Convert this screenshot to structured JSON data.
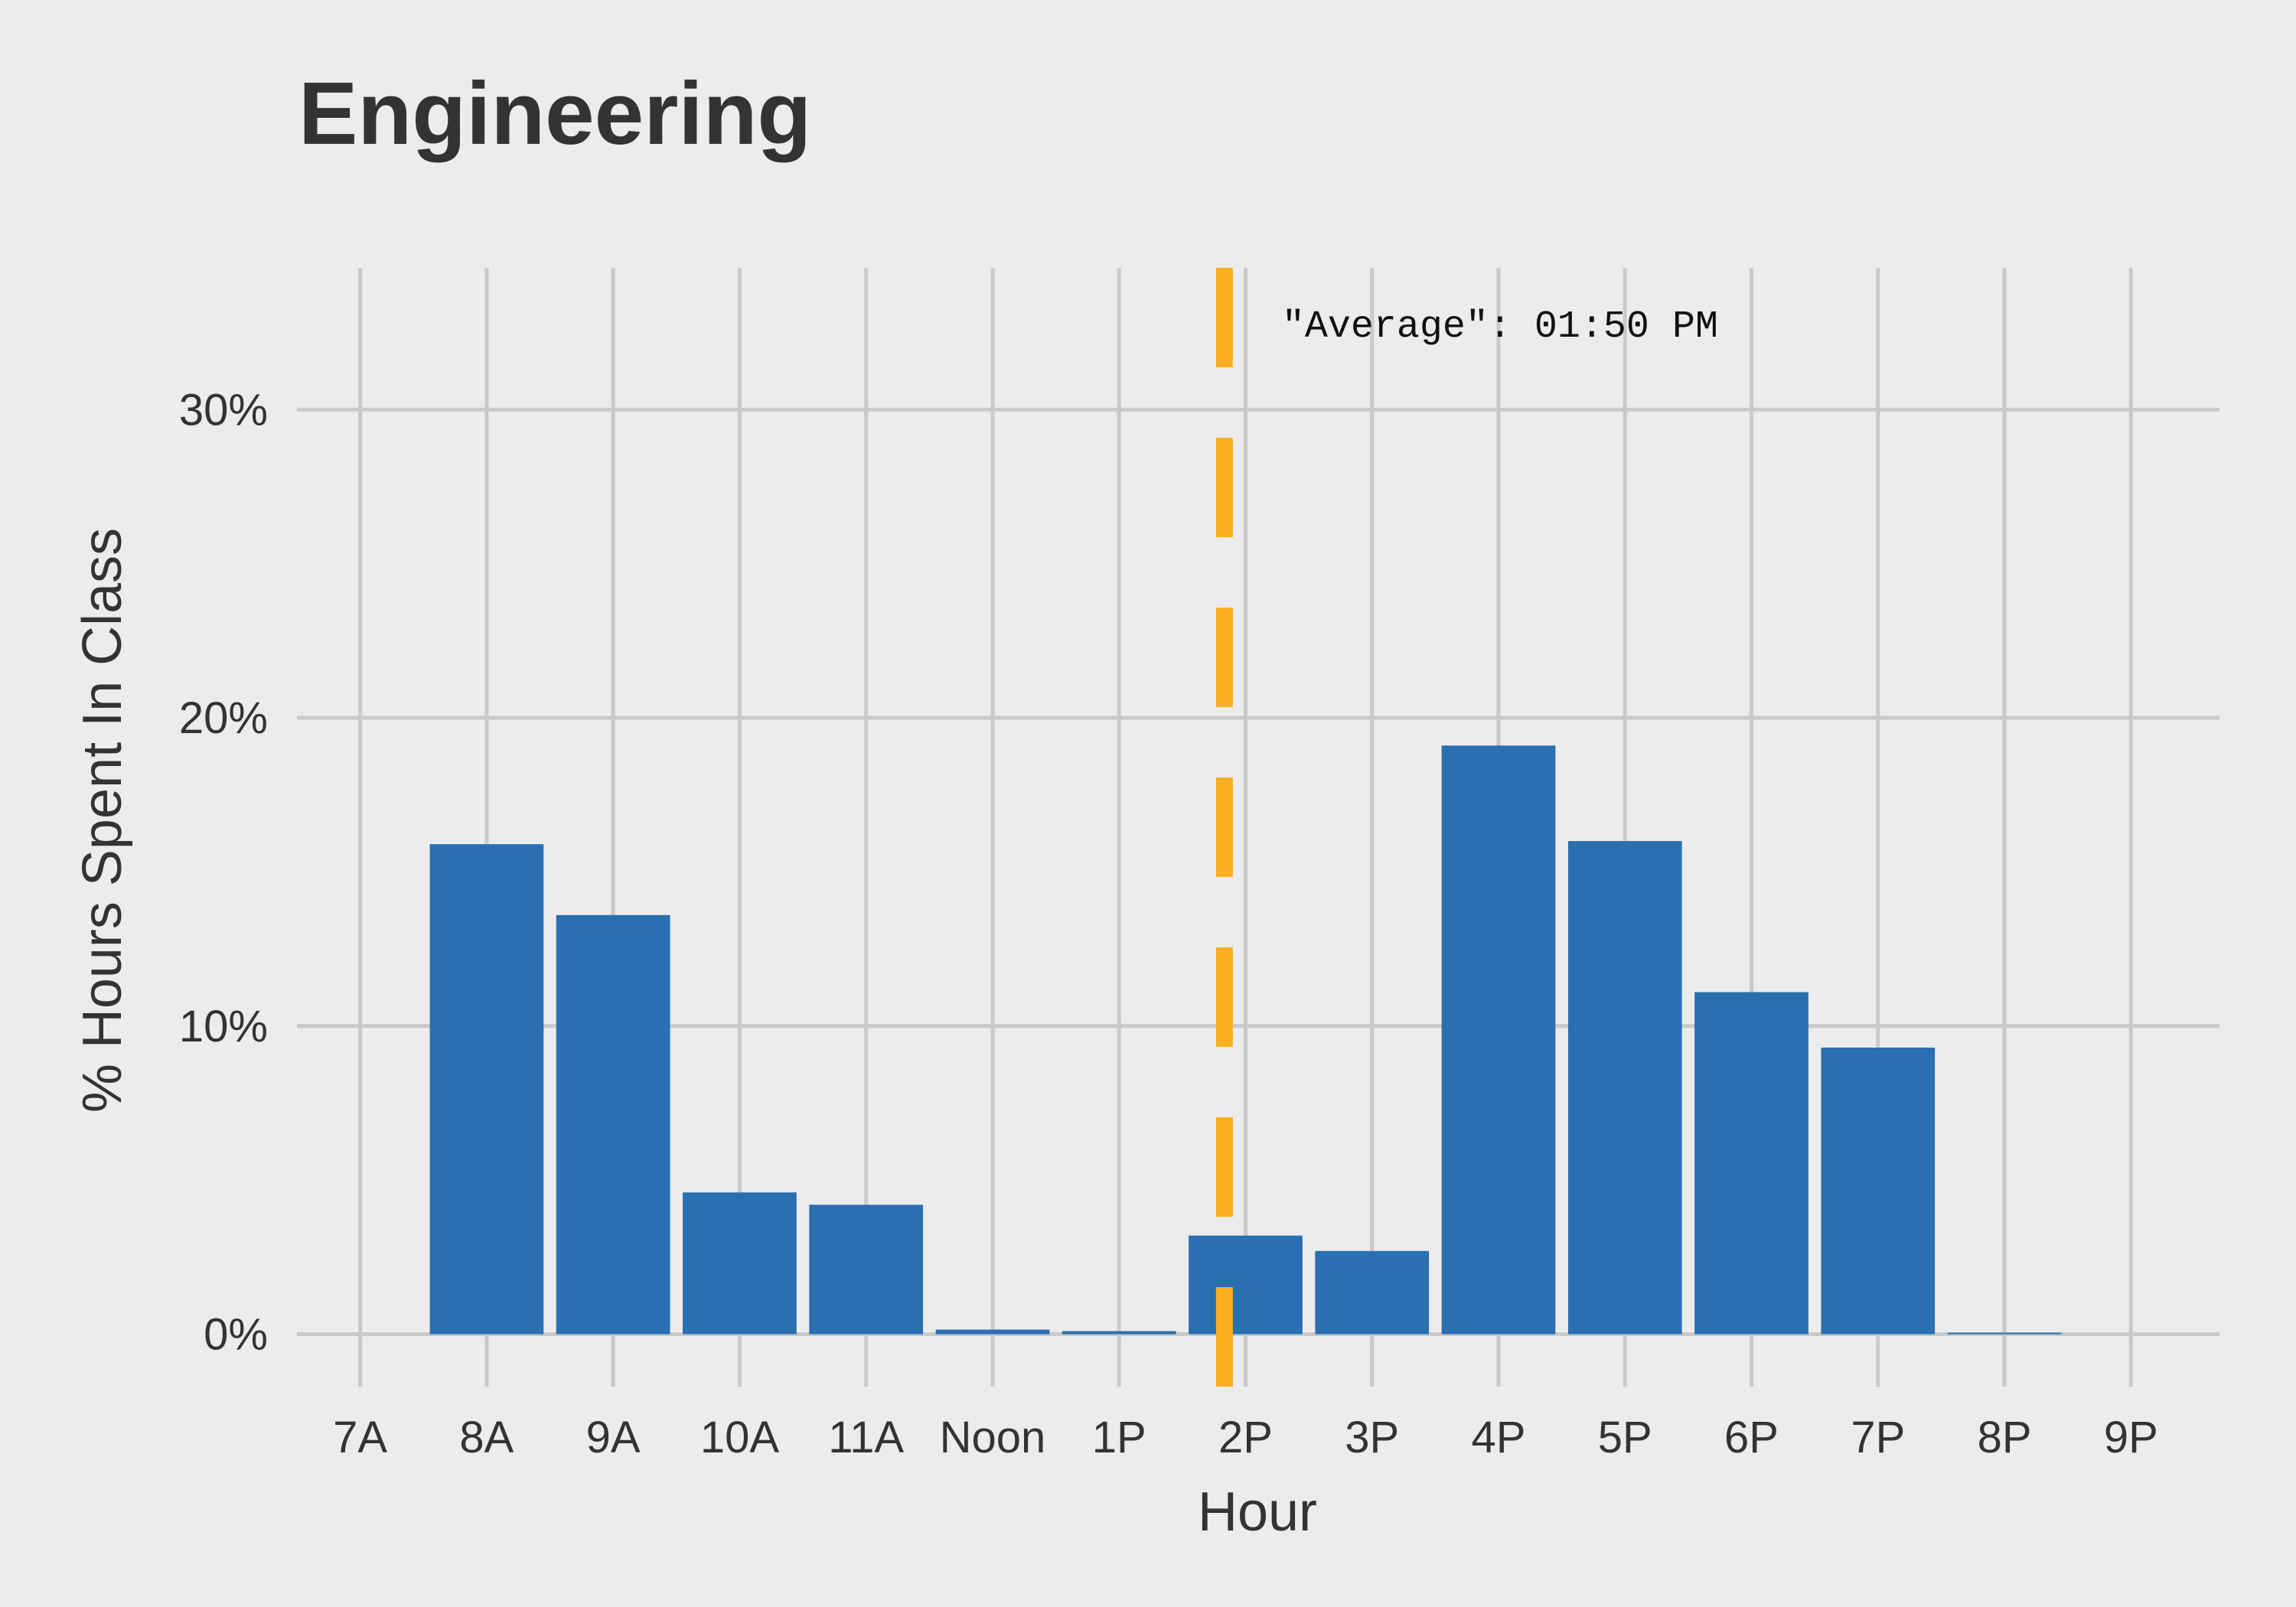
{
  "chart_data": {
    "type": "bar",
    "title": "Engineering",
    "xlabel": "Hour",
    "ylabel": "% Hours Spent In Class",
    "categories": [
      "7A",
      "8A",
      "9A",
      "10A",
      "11A",
      "Noon",
      "1P",
      "2P",
      "3P",
      "4P",
      "5P",
      "6P",
      "7P",
      "8P",
      "9P"
    ],
    "values": [
      0,
      15.9,
      13.6,
      4.6,
      4.2,
      0.15,
      0.1,
      3.2,
      2.7,
      19.1,
      16.0,
      11.1,
      9.3,
      0.05,
      0
    ],
    "y_ticks": [
      0,
      10,
      20,
      30
    ],
    "y_tick_labels": [
      "0%",
      "10%",
      "20%",
      "30%"
    ],
    "ylim": [
      -1.7,
      34.6
    ],
    "xlim": [
      6.5,
      21.7
    ],
    "grid": true,
    "legend": "none",
    "bar_color": "#2a6fb0",
    "average_line": {
      "x": 13.833,
      "label": "\"Average\": 01:50 PM",
      "color": "#fbae1f",
      "style": "dashed"
    }
  }
}
